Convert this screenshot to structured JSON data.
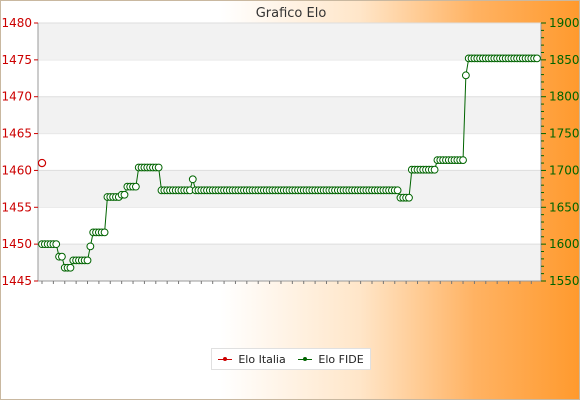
{
  "chart_data": {
    "type": "line",
    "title": "Grafico Elo",
    "xlabel": "",
    "ylabel": "",
    "left_axis": {
      "ylim": [
        1445,
        1480
      ],
      "ticks": [
        1445,
        1450,
        1455,
        1460,
        1465,
        1470,
        1475,
        1480
      ],
      "color": "#cc0000"
    },
    "right_axis": {
      "ylim": [
        1550,
        1900
      ],
      "ticks": [
        1550,
        1600,
        1650,
        1700,
        1750,
        1800,
        1850,
        1900
      ],
      "color": "#006400"
    },
    "grid": "horizontal-bands",
    "legend_position": "bottom-center",
    "series": [
      {
        "name": "Elo Italia",
        "axis": "left",
        "color": "#cc0000",
        "values": [
          1461
        ]
      },
      {
        "name": "Elo FIDE",
        "axis": "right",
        "color": "#006400",
        "values": [
          1600,
          1600,
          1600,
          1600,
          1600,
          1600,
          1583,
          1583,
          1568,
          1568,
          1568,
          1578,
          1578,
          1578,
          1578,
          1578,
          1578,
          1597,
          1616,
          1616,
          1616,
          1616,
          1616,
          1664,
          1664,
          1664,
          1664,
          1664,
          1667,
          1667,
          1678,
          1678,
          1678,
          1678,
          1704,
          1704,
          1704,
          1704,
          1704,
          1704,
          1704,
          1704,
          1673,
          1673,
          1673,
          1673,
          1673,
          1673,
          1673,
          1673,
          1673,
          1673,
          1673,
          1688,
          1673,
          1673,
          1673,
          1673,
          1673,
          1673,
          1673,
          1673,
          1673,
          1673,
          1673,
          1673,
          1673,
          1673,
          1673,
          1673,
          1673,
          1673,
          1673,
          1673,
          1673,
          1673,
          1673,
          1673,
          1673,
          1673,
          1673,
          1673,
          1673,
          1673,
          1673,
          1673,
          1673,
          1673,
          1673,
          1673,
          1673,
          1673,
          1673,
          1673,
          1673,
          1673,
          1673,
          1673,
          1673,
          1673,
          1673,
          1673,
          1673,
          1673,
          1673,
          1673,
          1673,
          1673,
          1673,
          1673,
          1673,
          1673,
          1673,
          1673,
          1673,
          1673,
          1673,
          1673,
          1673,
          1673,
          1673,
          1673,
          1673,
          1673,
          1673,
          1673,
          1663,
          1663,
          1663,
          1663,
          1701,
          1701,
          1701,
          1701,
          1701,
          1701,
          1701,
          1701,
          1701,
          1714,
          1714,
          1714,
          1714,
          1714,
          1714,
          1714,
          1714,
          1714,
          1714,
          1829,
          1852,
          1852,
          1852,
          1852,
          1852,
          1852,
          1852,
          1852,
          1852,
          1852,
          1852,
          1852,
          1852,
          1852,
          1852,
          1852,
          1852,
          1852,
          1852,
          1852,
          1852,
          1852,
          1852,
          1852,
          1852
        ]
      }
    ]
  }
}
